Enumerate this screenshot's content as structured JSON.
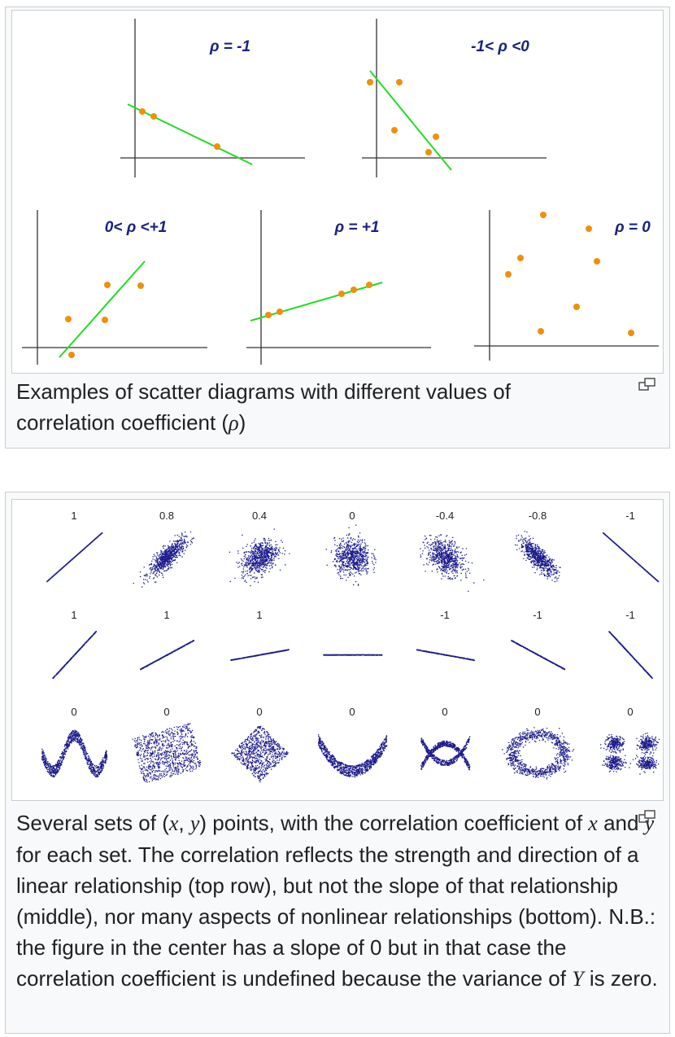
{
  "figure1": {
    "panels": [
      {
        "label": "ρ = -1"
      },
      {
        "label": "-1< ρ <0"
      },
      {
        "label": "0< ρ <+1"
      },
      {
        "label": "ρ = +1"
      },
      {
        "label": "ρ = 0"
      }
    ],
    "caption_part1": "Examples of scatter diagrams with different values of correlation coefficient (",
    "caption_symbol": "ρ",
    "caption_part2": ")",
    "colors": {
      "point": "#f0900a",
      "line": "#22dd22",
      "label": "#1a237e"
    },
    "magnify_icon": "magnify-icon"
  },
  "figure2": {
    "rows": [
      {
        "labels": [
          "1",
          "0.8",
          "0.4",
          "0",
          "-0.4",
          "-0.8",
          "-1"
        ]
      },
      {
        "labels": [
          "1",
          "1",
          "1",
          "",
          "-1",
          "-1",
          "-1"
        ]
      },
      {
        "labels": [
          "0",
          "0",
          "0",
          "0",
          "0",
          "0",
          "0"
        ]
      }
    ],
    "caption_segments": [
      {
        "t": "Several sets of (",
        "i": false
      },
      {
        "t": "x",
        "i": true
      },
      {
        "t": ", ",
        "i": false
      },
      {
        "t": "y",
        "i": true
      },
      {
        "t": ") points, with the correlation coefficient of ",
        "i": false
      },
      {
        "t": "x",
        "i": true
      },
      {
        "t": " and ",
        "i": false
      },
      {
        "t": "y",
        "i": true
      },
      {
        "t": " for each set. The correlation reflects the strength and direction of a linear relationship (top row), but not the slope of that relationship (middle), nor many aspects of nonlinear relationships (bottom). N.B.: the figure in the center has a slope of 0 but in that case the correlation coefficient is undefined because the variance of ",
        "i": false
      },
      {
        "t": "Y",
        "i": true
      },
      {
        "t": " is zero.",
        "i": false
      }
    ],
    "colors": {
      "dot": "#1a1a8c"
    },
    "magnify_icon": "magnify-icon"
  }
}
